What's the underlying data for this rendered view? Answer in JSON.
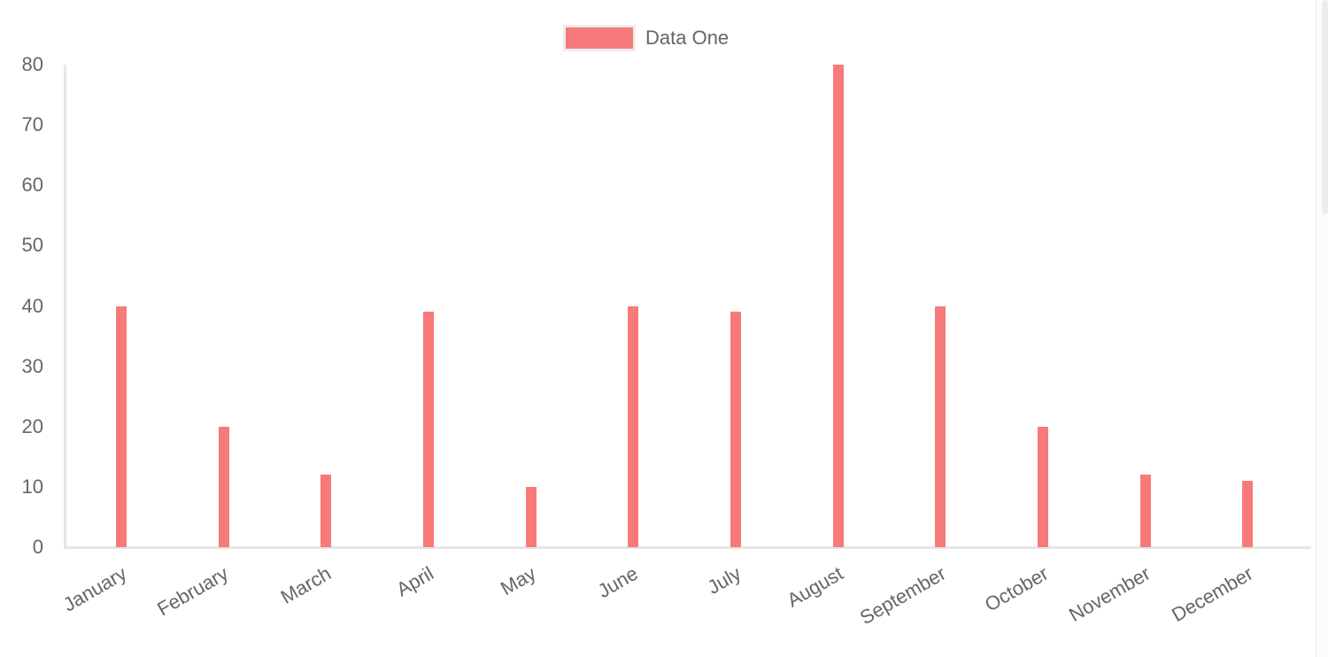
{
  "legend": {
    "items": [
      {
        "label": "Data One",
        "color": "#f87979"
      }
    ]
  },
  "chart_data": {
    "type": "bar",
    "categories": [
      "January",
      "February",
      "March",
      "April",
      "May",
      "June",
      "July",
      "August",
      "September",
      "October",
      "November",
      "December"
    ],
    "series": [
      {
        "name": "Data One",
        "color": "#f87979",
        "values": [
          40,
          20,
          12,
          39,
          10,
          40,
          39,
          80,
          40,
          20,
          12,
          11
        ]
      }
    ],
    "ylim": [
      0,
      80
    ],
    "yticks": [
      0,
      10,
      20,
      30,
      40,
      50,
      60,
      70,
      80
    ],
    "grid": false,
    "legend_position": "top-center",
    "axis_line_color": "#e6e6e6",
    "tick_label_color": "#666666",
    "x_label_rotation_deg": -30
  }
}
